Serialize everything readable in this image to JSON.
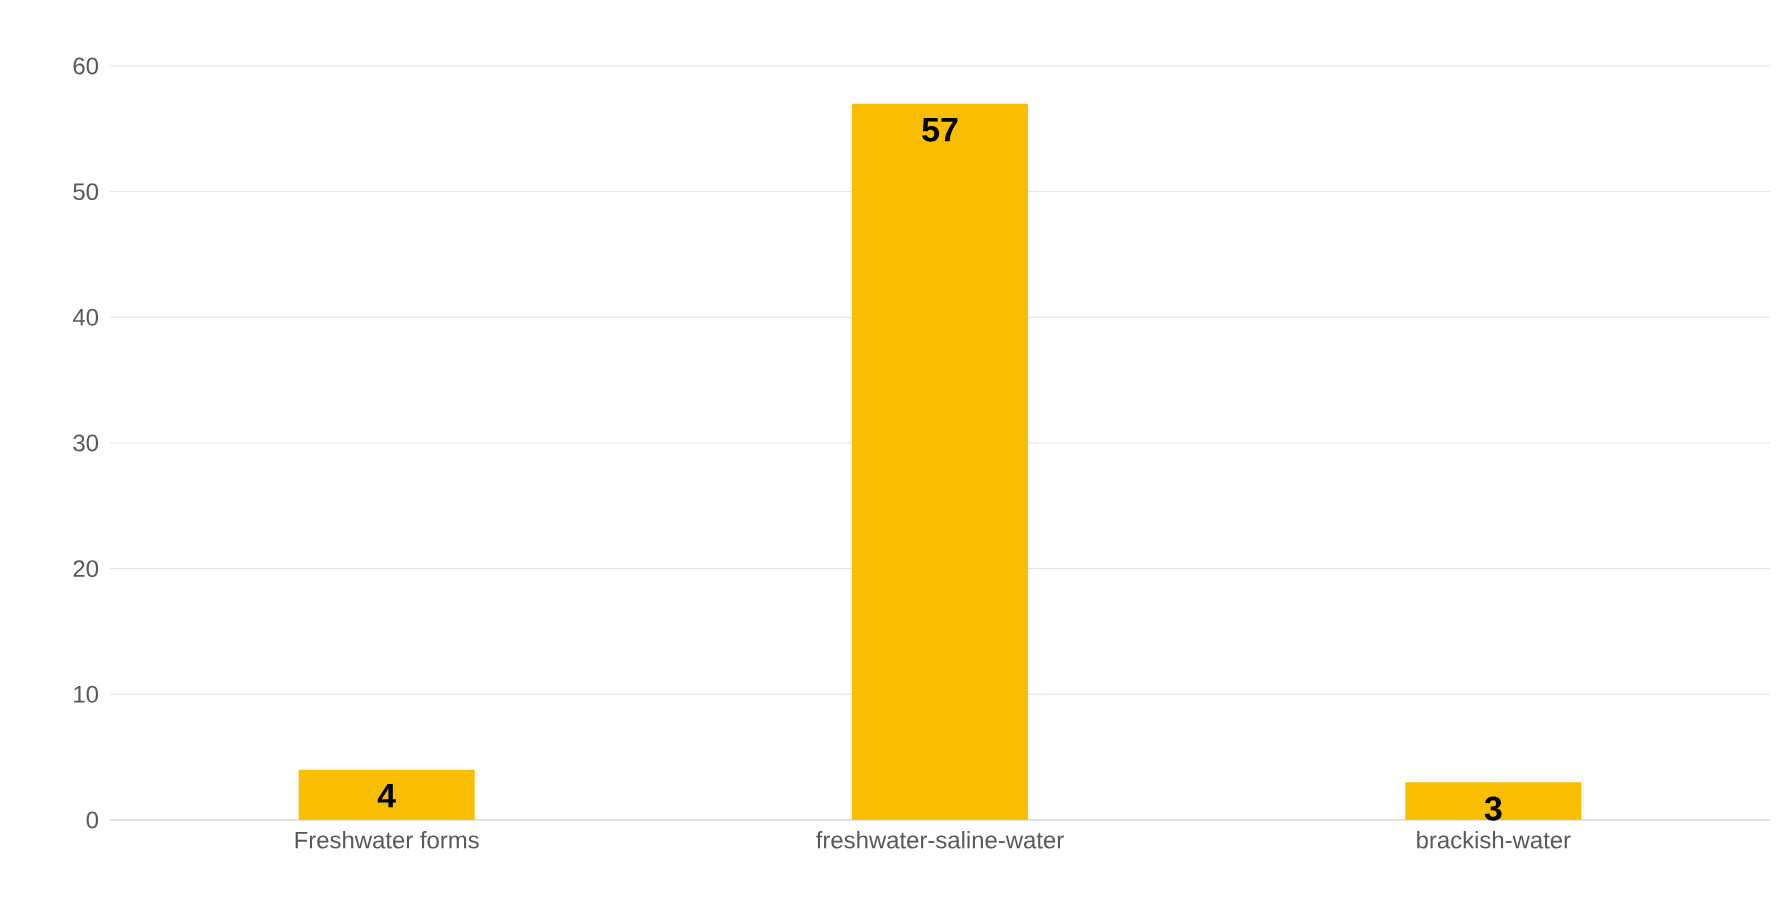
{
  "chart_data": {
    "type": "bar",
    "categories": [
      "Freshwater forms",
      "freshwater-saline-water",
      "brackish-water"
    ],
    "values": [
      4,
      57,
      3
    ],
    "color": "#f9be00",
    "ylim": [
      0,
      60
    ],
    "yticks": [
      0,
      10,
      20,
      30,
      40,
      50,
      60
    ],
    "grid": "y",
    "data_labels": true
  }
}
